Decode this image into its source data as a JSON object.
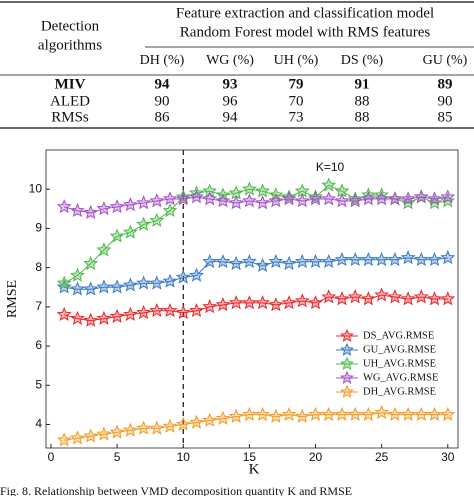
{
  "table": {
    "corner": [
      "Detection",
      "algorithms"
    ],
    "group_header": [
      "Feature extraction and classification model",
      "Random Forest model with RMS features"
    ],
    "columns": [
      "DH (%)",
      "WG (%)",
      "UH (%)",
      "DS (%)",
      "GU (%)"
    ],
    "rows": [
      {
        "name": "MIV",
        "cells": [
          94,
          93,
          79,
          91,
          89
        ],
        "bold": true
      },
      {
        "name": "ALED",
        "cells": [
          90,
          96,
          70,
          88,
          90
        ]
      },
      {
        "name": "RMSs",
        "cells": [
          86,
          94,
          73,
          88,
          85
        ]
      }
    ]
  },
  "chart_data": {
    "type": "line",
    "x_label": "K",
    "y_label": "RMSE",
    "x": [
      1,
      2,
      3,
      4,
      5,
      6,
      7,
      8,
      9,
      10,
      11,
      12,
      13,
      14,
      15,
      16,
      17,
      18,
      19,
      20,
      21,
      22,
      23,
      24,
      25,
      26,
      27,
      28,
      29,
      30
    ],
    "xlim": [
      0,
      31
    ],
    "xticks": [
      0,
      5,
      10,
      15,
      20,
      25,
      30
    ],
    "ylim": [
      3.4,
      11.0
    ],
    "yticks": [
      4,
      5,
      6,
      7,
      8,
      9,
      10
    ],
    "grid": false,
    "legend": "lower right",
    "annotation": {
      "text": "K=10",
      "x": 10
    },
    "series": [
      {
        "name": "DS_AVG.RMSE",
        "color": "#e8262a",
        "values": [
          6.8,
          6.7,
          6.65,
          6.7,
          6.75,
          6.8,
          6.85,
          6.9,
          6.9,
          6.85,
          6.9,
          7.0,
          7.05,
          7.1,
          7.1,
          7.1,
          7.05,
          7.1,
          7.15,
          7.1,
          7.25,
          7.2,
          7.25,
          7.2,
          7.3,
          7.25,
          7.2,
          7.25,
          7.2,
          7.2
        ]
      },
      {
        "name": "GU_AVG.RMSE",
        "color": "#3a78c2",
        "values": [
          7.5,
          7.45,
          7.45,
          7.5,
          7.5,
          7.55,
          7.6,
          7.6,
          7.65,
          7.75,
          7.8,
          8.15,
          8.15,
          8.1,
          8.15,
          8.05,
          8.15,
          8.1,
          8.15,
          8.15,
          8.15,
          8.2,
          8.2,
          8.2,
          8.2,
          8.2,
          8.25,
          8.2,
          8.2,
          8.25
        ]
      },
      {
        "name": "UH_AVG.RMSE",
        "color": "#4cb848",
        "values": [
          7.6,
          7.8,
          8.1,
          8.45,
          8.8,
          8.9,
          9.1,
          9.2,
          9.45,
          9.8,
          9.9,
          9.95,
          9.85,
          9.9,
          10.0,
          9.95,
          9.85,
          9.8,
          9.95,
          9.8,
          10.1,
          9.95,
          9.75,
          9.85,
          9.85,
          9.75,
          9.65,
          9.8,
          9.65,
          9.7
        ]
      },
      {
        "name": "WG_AVG.RMSE",
        "color": "#a64fc9",
        "values": [
          9.55,
          9.45,
          9.4,
          9.5,
          9.55,
          9.6,
          9.65,
          9.7,
          9.75,
          9.75,
          9.8,
          9.75,
          9.7,
          9.65,
          9.7,
          9.65,
          9.7,
          9.75,
          9.7,
          9.75,
          9.75,
          9.7,
          9.7,
          9.75,
          9.75,
          9.75,
          9.75,
          9.8,
          9.75,
          9.8
        ]
      },
      {
        "name": "DH_AVG.RMSE",
        "color": "#f39a25",
        "values": [
          3.6,
          3.65,
          3.7,
          3.75,
          3.8,
          3.85,
          3.9,
          3.9,
          3.95,
          4.0,
          4.05,
          4.1,
          4.15,
          4.2,
          4.25,
          4.25,
          4.2,
          4.25,
          4.2,
          4.25,
          4.25,
          4.25,
          4.25,
          4.25,
          4.3,
          4.25,
          4.25,
          4.25,
          4.25,
          4.25
        ]
      }
    ]
  },
  "caption": "Fig. 8.   Relationship between VMD decomposition quantity K and RMSE"
}
